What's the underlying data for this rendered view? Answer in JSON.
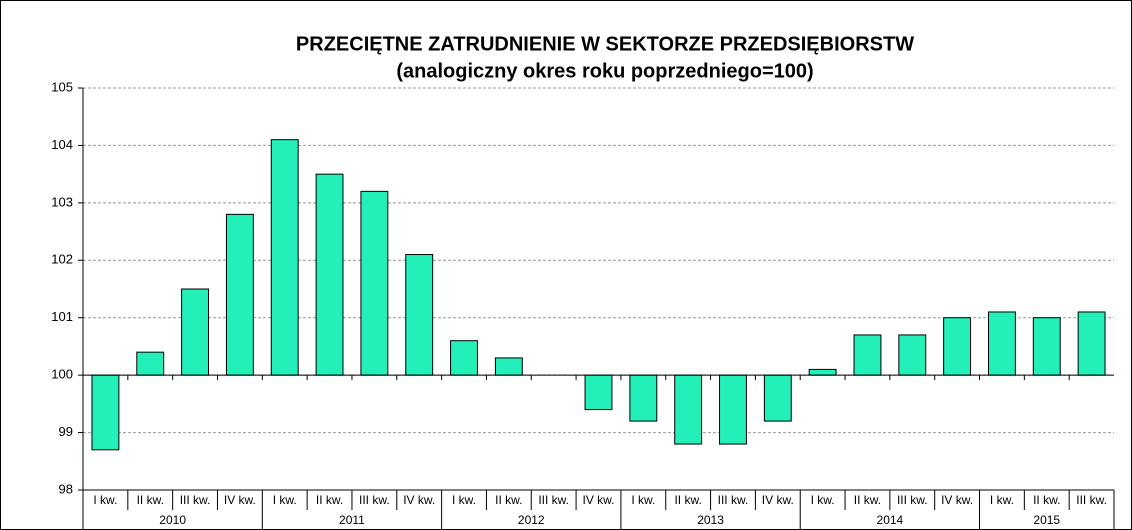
{
  "chart_data": {
    "type": "bar",
    "title": "PRZECIĘTNE ZATRUDNIENIE W SEKTORZE PRZEDSIĘBIORSTW",
    "subtitle": "(analogiczny okres roku poprzedniego=100)",
    "groups": [
      {
        "label": "2010",
        "categories": [
          "I kw.",
          "II kw.",
          "III kw.",
          "IV kw."
        ]
      },
      {
        "label": "2011",
        "categories": [
          "I kw.",
          "II kw.",
          "III kw.",
          "IV kw."
        ]
      },
      {
        "label": "2012",
        "categories": [
          "I kw.",
          "II kw.",
          "III kw.",
          "IV kw."
        ]
      },
      {
        "label": "2013",
        "categories": [
          "I kw.",
          "II kw.",
          "III kw.",
          "IV kw."
        ]
      },
      {
        "label": "2014",
        "categories": [
          "I kw.",
          "II kw.",
          "III kw.",
          "IV kw."
        ]
      },
      {
        "label": "2015",
        "categories": [
          "I kw.",
          "II kw.",
          "III kw."
        ]
      }
    ],
    "values": [
      98.7,
      100.4,
      101.5,
      102.8,
      104.1,
      103.5,
      103.2,
      102.1,
      100.6,
      100.3,
      100.0,
      99.4,
      99.2,
      98.8,
      98.8,
      99.2,
      100.1,
      100.7,
      100.7,
      101.0,
      101.1,
      101.0,
      101.1
    ],
    "color": "#22f0b8",
    "baseline": 100,
    "ylim": [
      98,
      105
    ],
    "yticks": [
      98,
      99,
      100,
      101,
      102,
      103,
      104,
      105
    ],
    "grid": true
  }
}
